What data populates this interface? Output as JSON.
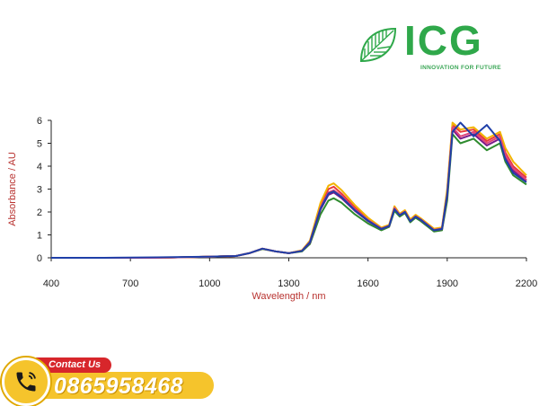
{
  "brand": {
    "name": "ICG",
    "tagline": "INNOVATION FOR FUTURE",
    "color": "#2fa84a"
  },
  "contact": {
    "label": "Contact Us",
    "phone": "0865958468",
    "icon": "phone-icon"
  },
  "chart_data": {
    "type": "line",
    "xlabel": "Wavelength / nm",
    "ylabel": "Absorbance / AU",
    "xlim": [
      400,
      2200
    ],
    "ylim": [
      0,
      6
    ],
    "xticks": [
      400,
      700,
      1000,
      1300,
      1600,
      1900,
      2200
    ],
    "yticks": [
      0,
      1,
      2,
      3,
      4,
      5,
      6
    ],
    "grid": false,
    "legend": "none",
    "label_color": "#b8322f",
    "series": [
      {
        "color": "#2e8b2e",
        "x": [
          400,
          600,
          800,
          1000,
          1100,
          1150,
          1200,
          1250,
          1300,
          1350,
          1380,
          1420,
          1450,
          1470,
          1500,
          1550,
          1600,
          1650,
          1680,
          1700,
          1720,
          1740,
          1760,
          1780,
          1800,
          1850,
          1880,
          1900,
          1920,
          1950,
          2000,
          2050,
          2100,
          2120,
          2150,
          2200
        ],
        "y": [
          0,
          0,
          0,
          0.05,
          0.08,
          0.2,
          0.38,
          0.28,
          0.2,
          0.28,
          0.6,
          1.9,
          2.5,
          2.6,
          2.4,
          1.9,
          1.5,
          1.2,
          1.35,
          2.05,
          1.8,
          1.95,
          1.55,
          1.75,
          1.6,
          1.15,
          1.2,
          2.5,
          5.4,
          5.0,
          5.2,
          4.7,
          5.0,
          4.2,
          3.6,
          3.2
        ]
      },
      {
        "color": "#7a1a8a",
        "x": [
          400,
          600,
          800,
          1000,
          1100,
          1150,
          1200,
          1250,
          1300,
          1350,
          1380,
          1420,
          1450,
          1470,
          1500,
          1550,
          1600,
          1650,
          1680,
          1700,
          1720,
          1740,
          1760,
          1780,
          1800,
          1850,
          1880,
          1900,
          1920,
          1950,
          2000,
          2050,
          2100,
          2120,
          2150,
          2200
        ],
        "y": [
          0,
          0,
          0,
          0.05,
          0.08,
          0.2,
          0.4,
          0.28,
          0.2,
          0.3,
          0.65,
          2.1,
          2.75,
          2.85,
          2.6,
          2.05,
          1.6,
          1.25,
          1.38,
          2.15,
          1.85,
          2.0,
          1.6,
          1.8,
          1.65,
          1.2,
          1.25,
          2.7,
          5.6,
          5.2,
          5.4,
          4.9,
          5.2,
          4.4,
          3.8,
          3.35
        ]
      },
      {
        "color": "#e83a3a",
        "x": [
          400,
          600,
          800,
          1000,
          1100,
          1150,
          1200,
          1250,
          1300,
          1350,
          1380,
          1420,
          1450,
          1470,
          1500,
          1550,
          1600,
          1650,
          1680,
          1700,
          1720,
          1740,
          1760,
          1780,
          1800,
          1850,
          1880,
          1900,
          1920,
          1950,
          2000,
          2050,
          2100,
          2120,
          2150,
          2200
        ],
        "y": [
          0,
          0,
          0,
          0.05,
          0.08,
          0.2,
          0.4,
          0.28,
          0.2,
          0.32,
          0.72,
          2.3,
          3.0,
          3.1,
          2.8,
          2.2,
          1.7,
          1.3,
          1.42,
          2.2,
          1.9,
          2.05,
          1.65,
          1.85,
          1.7,
          1.25,
          1.3,
          2.9,
          5.8,
          5.5,
          5.6,
          5.1,
          5.4,
          4.6,
          4.0,
          3.5
        ]
      },
      {
        "color": "#f2b400",
        "x": [
          400,
          600,
          800,
          1000,
          1100,
          1150,
          1200,
          1250,
          1300,
          1350,
          1380,
          1420,
          1450,
          1470,
          1500,
          1550,
          1600,
          1650,
          1680,
          1700,
          1720,
          1740,
          1760,
          1780,
          1800,
          1850,
          1880,
          1900,
          1920,
          1950,
          2000,
          2050,
          2100,
          2120,
          2150,
          2200
        ],
        "y": [
          0,
          0,
          0,
          0.05,
          0.08,
          0.2,
          0.4,
          0.28,
          0.2,
          0.33,
          0.75,
          2.4,
          3.15,
          3.25,
          2.95,
          2.3,
          1.75,
          1.32,
          1.44,
          2.25,
          1.92,
          2.08,
          1.68,
          1.88,
          1.72,
          1.27,
          1.32,
          3.0,
          5.9,
          5.6,
          5.7,
          5.2,
          5.5,
          4.8,
          4.2,
          3.6
        ]
      },
      {
        "color": "#e0457a",
        "x": [
          400,
          600,
          800,
          1000,
          1100,
          1150,
          1200,
          1250,
          1300,
          1350,
          1380,
          1420,
          1450,
          1470,
          1500,
          1550,
          1600,
          1650,
          1680,
          1700,
          1720,
          1740,
          1760,
          1780,
          1800,
          1850,
          1880,
          1900,
          1920,
          1950,
          2000,
          2050,
          2100,
          2120,
          2150,
          2200
        ],
        "y": [
          0,
          0,
          0,
          0.05,
          0.08,
          0.2,
          0.4,
          0.28,
          0.2,
          0.31,
          0.7,
          2.2,
          2.85,
          2.95,
          2.7,
          2.12,
          1.65,
          1.28,
          1.4,
          2.18,
          1.88,
          2.02,
          1.62,
          1.82,
          1.68,
          1.22,
          1.28,
          2.8,
          5.7,
          5.3,
          5.5,
          5.0,
          5.3,
          4.5,
          3.9,
          3.4
        ]
      },
      {
        "color": "#1f3fa8",
        "x": [
          400,
          600,
          800,
          1000,
          1100,
          1150,
          1200,
          1250,
          1300,
          1350,
          1380,
          1420,
          1450,
          1470,
          1500,
          1550,
          1600,
          1650,
          1680,
          1700,
          1720,
          1740,
          1760,
          1780,
          1800,
          1850,
          1880,
          1900,
          1920,
          1950,
          2000,
          2050,
          2100,
          2120,
          2150,
          2200
        ],
        "y": [
          0,
          0,
          0.02,
          0.05,
          0.08,
          0.2,
          0.4,
          0.28,
          0.2,
          0.3,
          0.68,
          2.15,
          2.8,
          2.9,
          2.65,
          2.08,
          1.62,
          1.26,
          1.39,
          2.12,
          1.86,
          2.0,
          1.6,
          1.8,
          1.66,
          1.2,
          1.26,
          2.75,
          5.5,
          5.9,
          5.3,
          5.8,
          5.1,
          4.3,
          3.7,
          3.3
        ]
      }
    ]
  }
}
